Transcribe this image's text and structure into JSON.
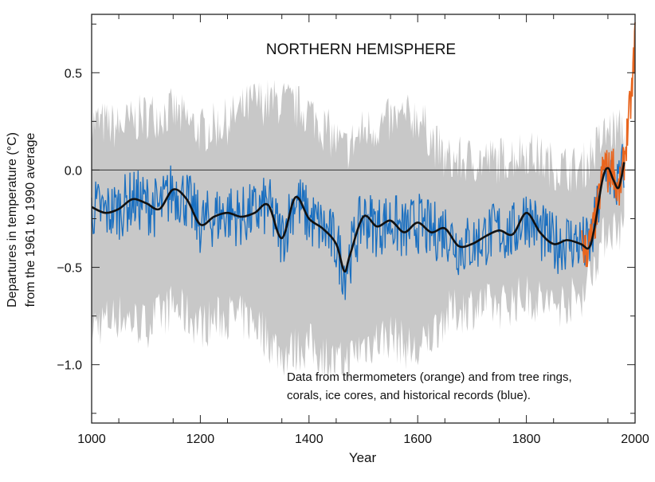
{
  "chart_data": {
    "type": "line",
    "title": "NORTHERN HEMISPHERE",
    "xlabel": "Year",
    "ylabel_lines": [
      "Departures in temperature (°C)",
      "from the 1961 to 1990 average"
    ],
    "annotation_lines": [
      "Data from thermometers (orange) and from tree rings,",
      "corals, ice cores, and historical records (blue)."
    ],
    "xlim": [
      1000,
      2000
    ],
    "ylim": [
      -1.3,
      0.8
    ],
    "xticks": [
      1000,
      1200,
      1400,
      1600,
      1800,
      2000
    ],
    "xtick_labels": [
      "1000",
      "1200",
      "1400",
      "1600",
      "1800",
      "2000"
    ],
    "yticks": [
      0.5,
      0.0,
      -0.5,
      -1.0
    ],
    "ytick_labels": [
      "0.5",
      "0.0",
      "−0.5",
      "−1.0"
    ],
    "zero_line": 0.0,
    "grid": false,
    "colors": {
      "uncertainty": "#c8c8c8",
      "proxy": "#1a6fc0",
      "thermometer": "#e8651e",
      "smoothed": "#111111"
    },
    "series": [
      {
        "x": [
          1000,
          1025,
          1050,
          1075,
          1100,
          1125,
          1150,
          1175,
          1200,
          1225,
          1250,
          1275,
          1300,
          1325,
          1350,
          1375,
          1400,
          1425,
          1450,
          1465,
          1475,
          1500,
          1525,
          1550,
          1575,
          1600,
          1625,
          1650,
          1675,
          1700,
          1725,
          1750,
          1775,
          1800,
          1825,
          1850,
          1875,
          1900,
          1915,
          1925,
          1940,
          1950,
          1960,
          1970,
          1980
        ],
        "y": [
          -0.19,
          -0.22,
          -0.2,
          -0.15,
          -0.17,
          -0.2,
          -0.1,
          -0.15,
          -0.28,
          -0.24,
          -0.22,
          -0.24,
          -0.22,
          -0.18,
          -0.35,
          -0.14,
          -0.25,
          -0.3,
          -0.38,
          -0.52,
          -0.44,
          -0.24,
          -0.29,
          -0.26,
          -0.32,
          -0.27,
          -0.32,
          -0.3,
          -0.39,
          -0.38,
          -0.34,
          -0.31,
          -0.33,
          -0.22,
          -0.32,
          -0.38,
          -0.36,
          -0.38,
          -0.4,
          -0.3,
          -0.05,
          0.01,
          -0.05,
          -0.09,
          0.04
        ]
      },
      {
        "x": [
          1000,
          1050,
          1100,
          1150,
          1200,
          1250,
          1300,
          1350,
          1400,
          1450,
          1465,
          1500,
          1550,
          1600,
          1650,
          1700,
          1750,
          1800,
          1850,
          1900,
          1950,
          1980
        ],
        "upper": [
          0.25,
          0.22,
          0.28,
          0.3,
          0.2,
          0.25,
          0.35,
          0.35,
          0.3,
          0.15,
          0.1,
          0.2,
          0.25,
          0.28,
          0.05,
          0.05,
          0.05,
          0.1,
          0.02,
          0.0,
          0.2,
          0.2
        ],
        "lower": [
          -0.8,
          -0.75,
          -0.8,
          -0.7,
          -0.8,
          -0.75,
          -0.78,
          -0.95,
          -0.9,
          -1.0,
          -1.0,
          -0.9,
          -0.85,
          -0.95,
          -0.75,
          -0.7,
          -0.7,
          -0.65,
          -0.7,
          -0.65,
          -0.3,
          -0.3
        ]
      },
      {
        "x": [
          1902,
          1910,
          1920,
          1925,
          1930,
          1940,
          1945,
          1950,
          1960,
          1965,
          1970,
          1975,
          1980,
          1985,
          1990,
          1995,
          1998,
          2000
        ],
        "y": [
          -0.38,
          -0.42,
          -0.35,
          -0.28,
          -0.22,
          -0.02,
          0.05,
          -0.02,
          0.03,
          -0.08,
          -0.12,
          -0.05,
          0.05,
          0.18,
          0.3,
          0.42,
          0.6,
          0.7
        ]
      }
    ]
  }
}
